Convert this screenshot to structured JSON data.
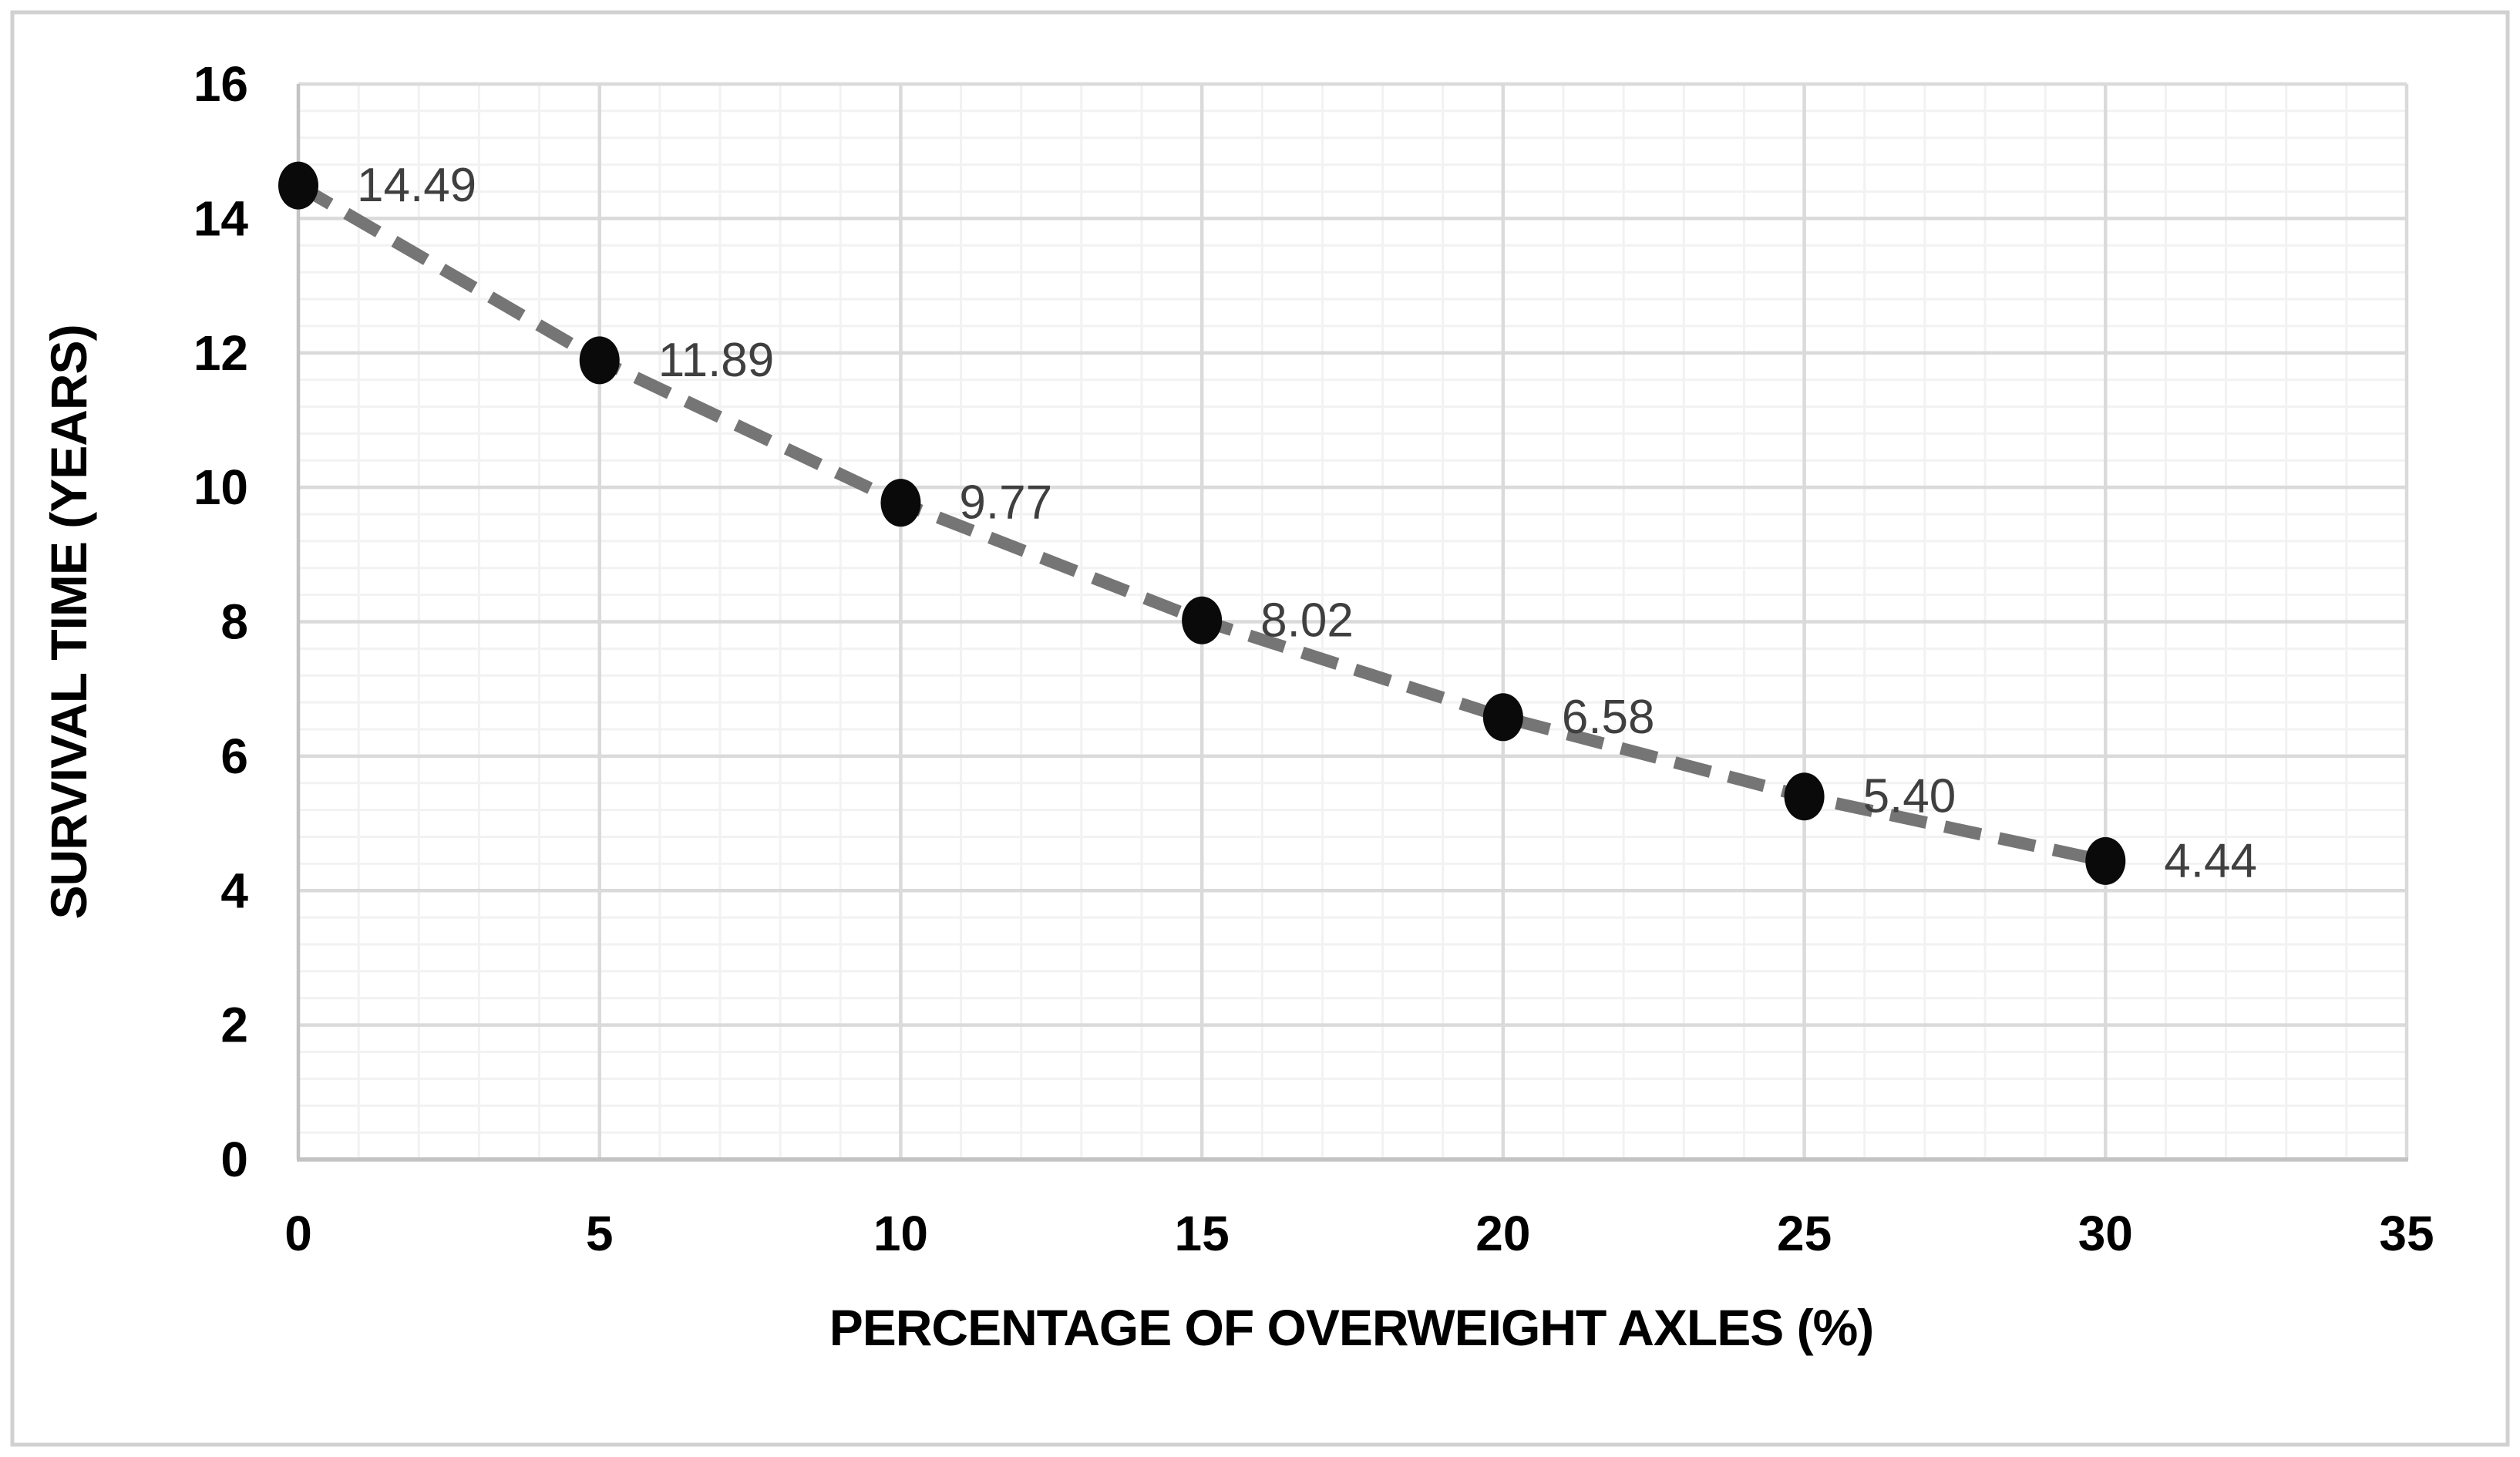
{
  "chart_data": {
    "type": "line",
    "title": "",
    "xlabel": "PERCENTAGE OF OVERWEIGHT AXLES (%)",
    "ylabel": "SURVIVAL TIME (YEARS)",
    "x": [
      0,
      5,
      10,
      15,
      20,
      25,
      30
    ],
    "y": [
      14.49,
      11.89,
      9.77,
      8.02,
      6.58,
      5.4,
      4.44
    ],
    "point_labels": [
      "14.49",
      "11.89",
      "9.77",
      "8.02",
      "6.58",
      "5.40",
      "4.44"
    ],
    "xlim": [
      0,
      35
    ],
    "ylim": [
      0,
      16
    ],
    "x_ticks": [
      {
        "v": 0,
        "label": "0"
      },
      {
        "v": 5,
        "label": "5"
      },
      {
        "v": 10,
        "label": "10"
      },
      {
        "v": 15,
        "label": "15"
      },
      {
        "v": 20,
        "label": "20"
      },
      {
        "v": 25,
        "label": "25"
      },
      {
        "v": 30,
        "label": "30"
      },
      {
        "v": 35,
        "label": "35"
      }
    ],
    "y_ticks": [
      {
        "v": 0,
        "label": "0"
      },
      {
        "v": 2,
        "label": "2"
      },
      {
        "v": 4,
        "label": "4"
      },
      {
        "v": 6,
        "label": "6"
      },
      {
        "v": 8,
        "label": "8"
      },
      {
        "v": 10,
        "label": "10"
      },
      {
        "v": 12,
        "label": "12"
      },
      {
        "v": 14,
        "label": "14"
      },
      {
        "v": 16,
        "label": "16"
      }
    ],
    "x_major_step": 5,
    "x_minor_step": 1,
    "y_major_step": 2,
    "y_minor_step": 0.4,
    "grid": "major-and-minor",
    "legend": "none",
    "line_style": "dashed",
    "marker": "filled-circle"
  },
  "colors": {
    "page_bg": "#FFFFFF",
    "chart_border": "#D1D1D1",
    "minor_grid": "#F2F2F2",
    "major_grid": "#DADADA",
    "axis_line": "#C3C3C3",
    "series_line": "#757575",
    "marker_fill": "#0A0A0A",
    "data_label": "#3F3F3F",
    "tick_label": "#000000",
    "axis_title": "#000000"
  }
}
